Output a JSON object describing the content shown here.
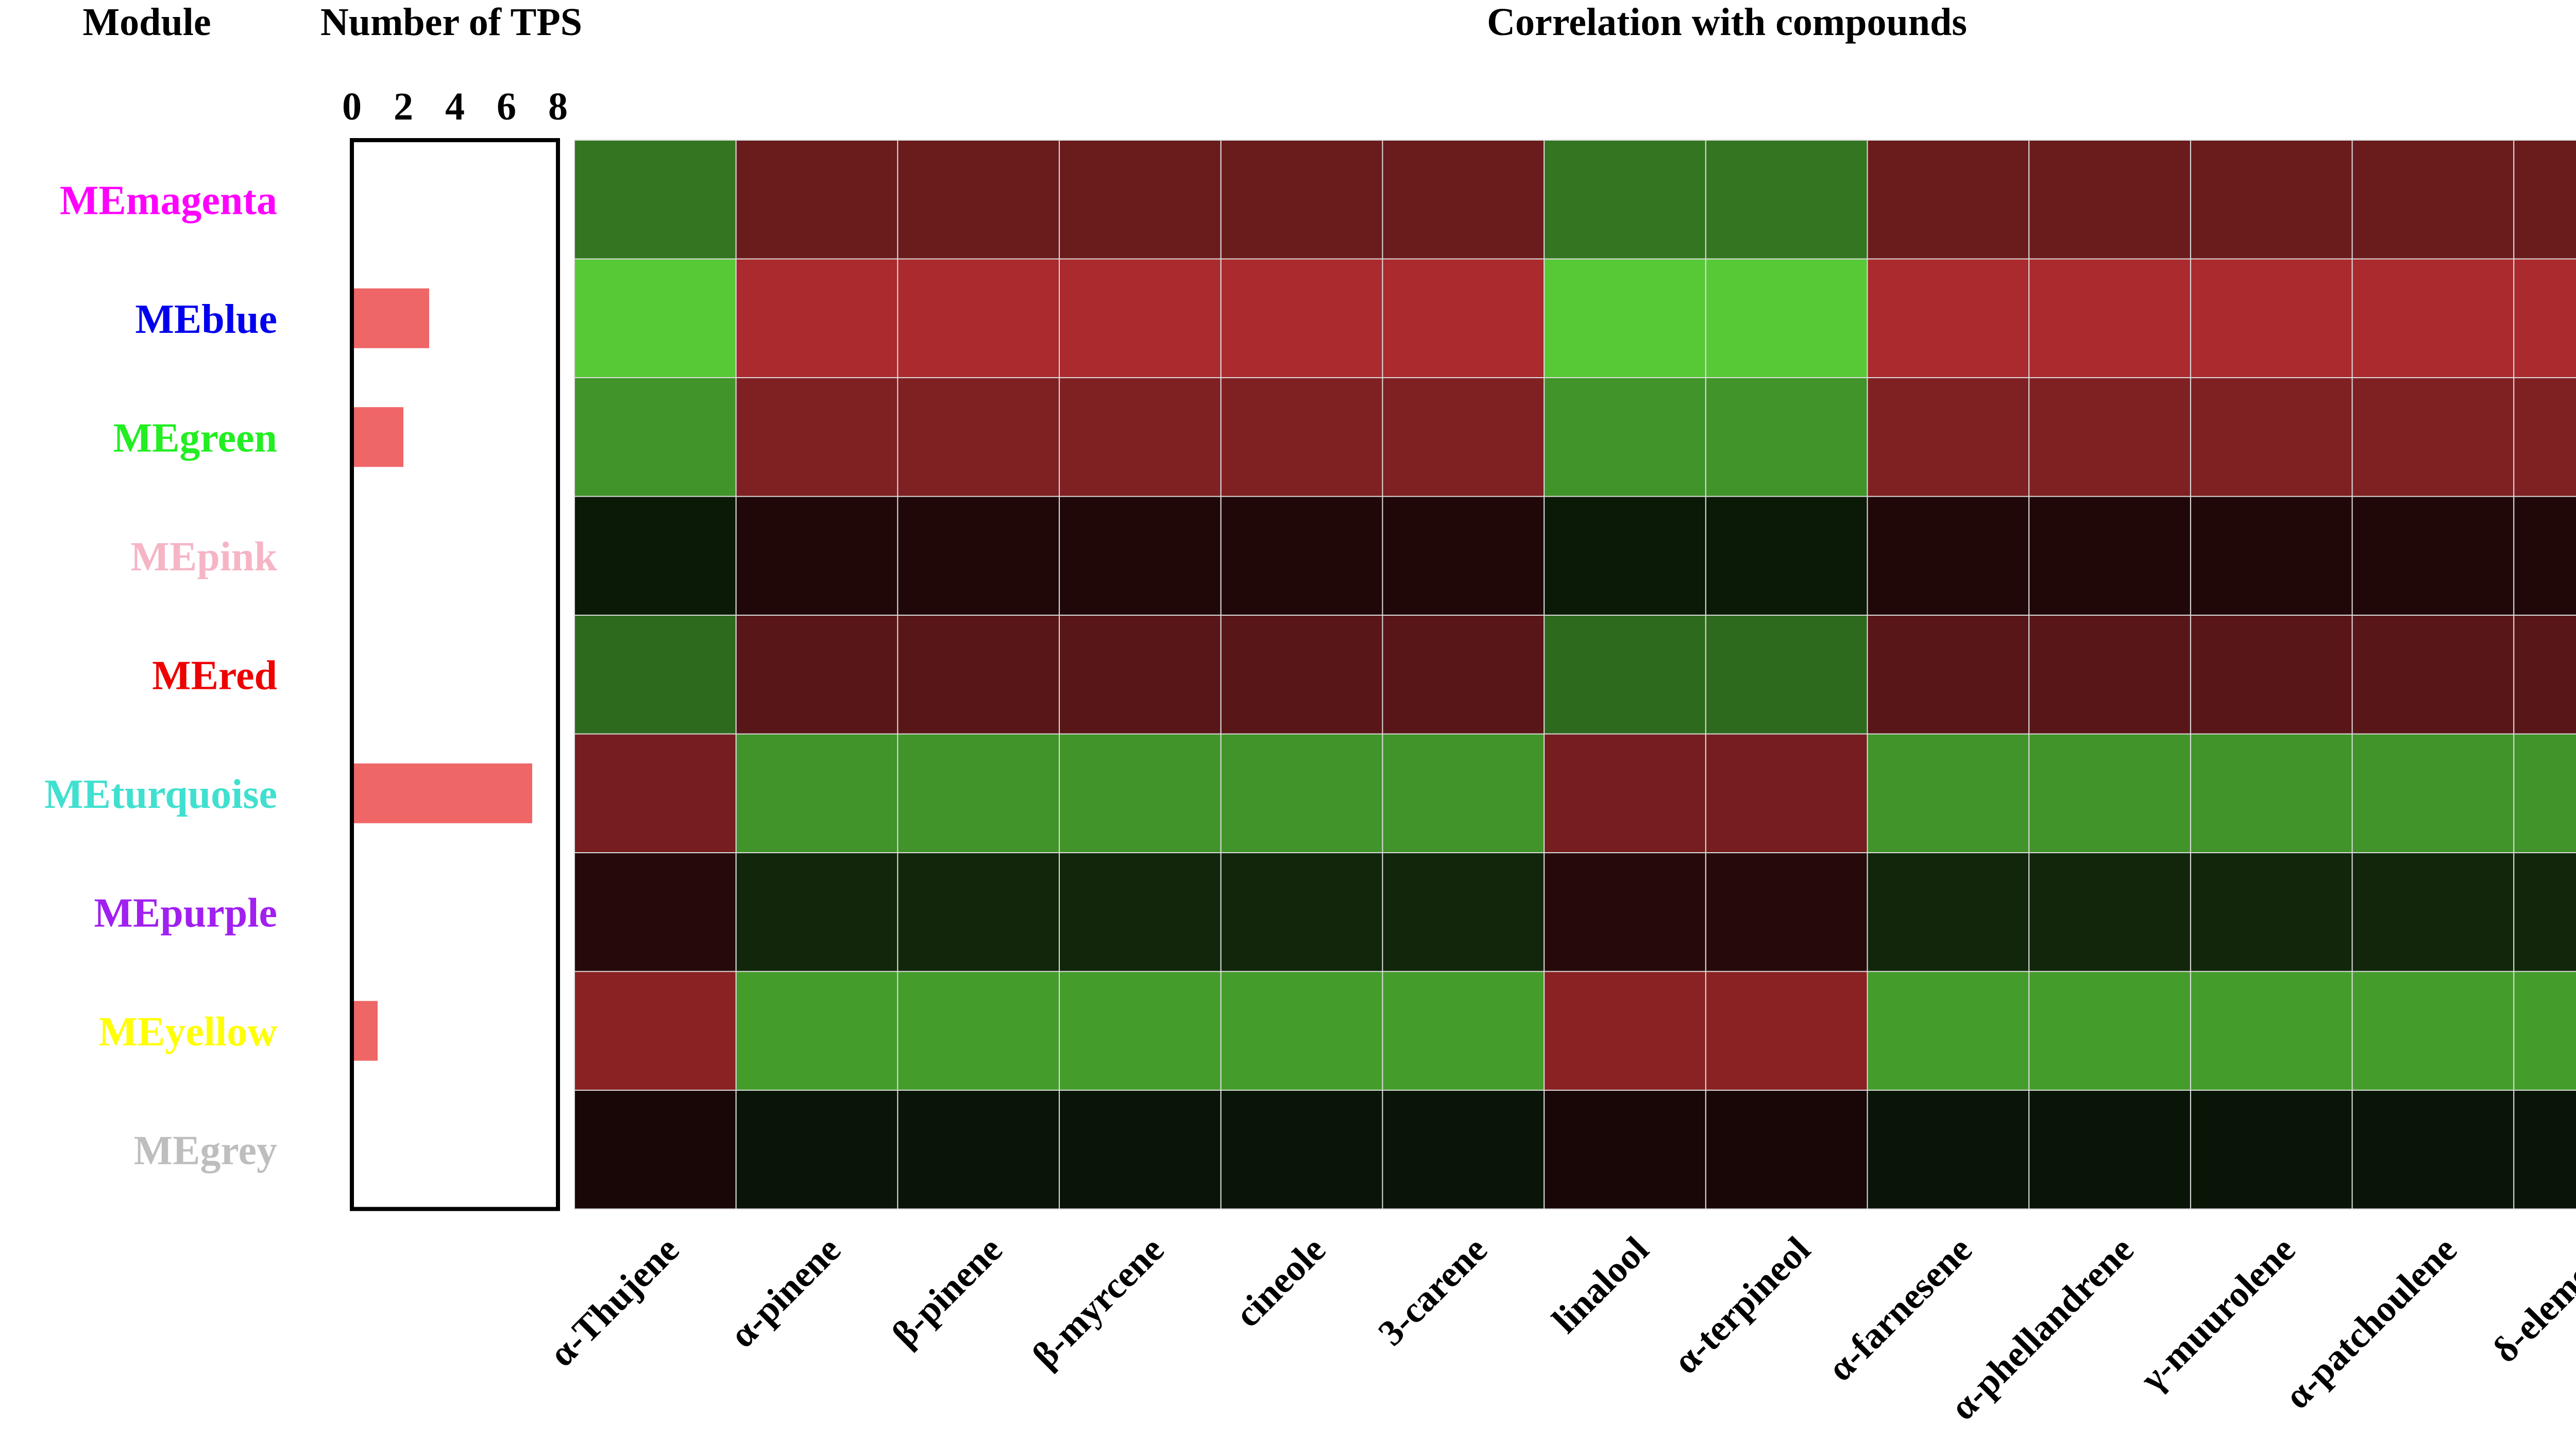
{
  "headers": {
    "module": "Module",
    "tps": "Number of TPS",
    "correlation": "Correlation with compounds"
  },
  "modules": [
    {
      "name": "MEmagenta",
      "color": "#ff00ff"
    },
    {
      "name": "MEblue",
      "color": "#0000ee"
    },
    {
      "name": "MEgreen",
      "color": "#22ee22"
    },
    {
      "name": "MEpink",
      "color": "#f5b5c5"
    },
    {
      "name": "MEred",
      "color": "#ee0000"
    },
    {
      "name": "MEturquoise",
      "color": "#40e0d0"
    },
    {
      "name": "MEpurple",
      "color": "#a020f0"
    },
    {
      "name": "MEyellow",
      "color": "#ffff00"
    },
    {
      "name": "MEgrey",
      "color": "#bebebe"
    }
  ],
  "chart_data": [
    {
      "type": "bar",
      "orientation": "horizontal",
      "title": "Number of TPS",
      "categories": [
        "MEmagenta",
        "MEblue",
        "MEgreen",
        "MEpink",
        "MEred",
        "MEturquoise",
        "MEpurple",
        "MEyellow",
        "MEgrey"
      ],
      "values": [
        0,
        3,
        2,
        0,
        0,
        7,
        0,
        1,
        0
      ],
      "xlim": [
        0,
        8
      ],
      "xticks": [
        "0",
        "2",
        "4",
        "6",
        "8"
      ],
      "bar_color": "#ee6666",
      "grid": false
    },
    {
      "type": "heatmap",
      "title": "Correlation with compounds",
      "rows": [
        "MEmagenta",
        "MEblue",
        "MEgreen",
        "MEpink",
        "MEred",
        "MEturquoise",
        "MEpurple",
        "MEyellow",
        "MEgrey"
      ],
      "columns": [
        "α-Thujene",
        "α-pinene",
        "β-pinene",
        "β-myrcene",
        "cineole",
        "3-carene",
        "linalool",
        "α-terpineol",
        "α-farnesene",
        "α-phellandrene",
        "γ-muurolene",
        "α-patchoulene",
        "δ-elemene"
      ],
      "values": [
        [
          -0.55,
          0.5,
          0.5,
          0.5,
          0.5,
          0.5,
          -0.55,
          -0.55,
          0.5,
          0.5,
          0.5,
          0.5,
          0.5
        ],
        [
          -0.95,
          0.8,
          0.8,
          0.8,
          0.8,
          0.8,
          -0.95,
          -0.95,
          0.8,
          0.8,
          0.8,
          0.8,
          0.8
        ],
        [
          -0.7,
          0.6,
          0.6,
          0.6,
          0.6,
          0.6,
          -0.7,
          -0.7,
          0.6,
          0.6,
          0.6,
          0.6,
          0.6
        ],
        [
          -0.12,
          0.15,
          0.15,
          0.15,
          0.15,
          0.15,
          -0.12,
          -0.12,
          0.15,
          0.15,
          0.15,
          0.15,
          0.15
        ],
        [
          -0.5,
          0.42,
          0.42,
          0.42,
          0.42,
          0.42,
          -0.5,
          -0.5,
          0.42,
          0.42,
          0.42,
          0.42,
          0.42
        ],
        [
          0.55,
          -0.7,
          -0.7,
          -0.7,
          -0.7,
          -0.7,
          0.55,
          0.55,
          -0.7,
          -0.7,
          -0.7,
          -0.7,
          -0.7
        ],
        [
          0.18,
          -0.18,
          -0.18,
          -0.18,
          -0.18,
          -0.18,
          0.18,
          0.18,
          -0.18,
          -0.18,
          -0.18,
          -0.18,
          -0.18
        ],
        [
          0.65,
          -0.74,
          -0.74,
          -0.74,
          -0.74,
          -0.74,
          0.65,
          0.65,
          -0.74,
          -0.74,
          -0.74,
          -0.74,
          -0.74
        ],
        [
          0.12,
          -0.1,
          -0.1,
          -0.1,
          -0.1,
          -0.1,
          0.12,
          0.12,
          -0.1,
          -0.1,
          -0.1,
          -0.1,
          -0.1
        ]
      ],
      "color_scale": {
        "negative": "#5cd43a",
        "zero": "#000000",
        "positive": "#d43538"
      },
      "legend": "none"
    }
  ]
}
